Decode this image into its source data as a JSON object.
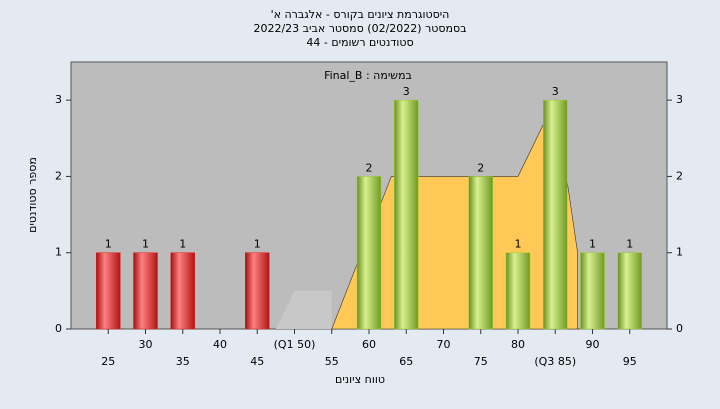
{
  "chart_data": {
    "type": "bar",
    "title": "היסטוגרמת ציונים בקורס - אלגברה א'",
    "subtitle": "בסמסטר  (02/2022)  סמסטר אביב 2022/23",
    "subtitle2": "סטודנטים רשומים - 44",
    "annotation": "Final_B : במשימה",
    "x_label": "טווח ציונים",
    "y_label": "מספר סטודנטים",
    "x": [
      25,
      30,
      35,
      40,
      45,
      50,
      55,
      60,
      65,
      70,
      75,
      80,
      85,
      90,
      95
    ],
    "values": [
      1,
      1,
      1,
      0,
      1,
      0,
      0,
      2,
      3,
      0,
      2,
      1,
      3,
      1,
      1
    ],
    "colors": [
      "#e02020",
      "#e02020",
      "#e02020",
      "#e02020",
      "#e02020",
      "#9acd32",
      "#9acd32",
      "#9acd32",
      "#9acd32",
      "#9acd32",
      "#9acd32",
      "#9acd32",
      "#9acd32",
      "#9acd32",
      "#9acd32"
    ],
    "areas": [
      {
        "color": "#c8c8c8",
        "x": [
          47.5,
          50,
          55
        ],
        "values": [
          0,
          0.5,
          0.5
        ]
      },
      {
        "color": "#ffc857",
        "x": [
          55,
          63,
          80,
          85,
          88
        ],
        "values": [
          0,
          2,
          2,
          3,
          1
        ]
      }
    ],
    "xlim": [
      20,
      100
    ],
    "xticks": [
      25,
      30,
      35,
      40,
      45,
      {
        "value": 50,
        "label": "(Q1 50)"
      },
      55,
      60,
      65,
      70,
      75,
      80,
      {
        "value": 85,
        "label": "(Q3 85)"
      },
      90,
      95
    ],
    "ylim": [
      0,
      3.5
    ],
    "yticks": [
      0,
      1,
      2,
      3
    ]
  }
}
